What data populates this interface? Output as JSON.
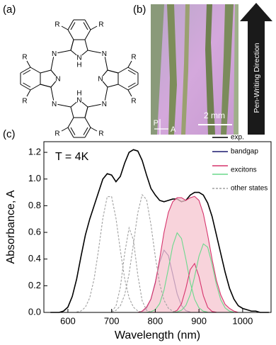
{
  "panels": [
    "(a)",
    "(b)",
    "(c)"
  ],
  "structure": {
    "substituents": [
      "R",
      "R",
      "R",
      "R",
      "R",
      "R",
      "R",
      "R"
    ],
    "nitrogens": [
      "N",
      "N",
      "N",
      "N",
      "N",
      "N",
      "N",
      "N"
    ],
    "hydrogens": [
      "H",
      "H"
    ]
  },
  "photo": {
    "polarizer": "P",
    "analyzer": "A",
    "scale": "2 mm",
    "arrow_label": "Pen-Writing Direction"
  },
  "chart_data": {
    "type": "line",
    "annotation": "T = 4K",
    "x_label": "Wavelength (nm)",
    "y_label": "Absorbance, A",
    "xlim": [
      545,
      1065
    ],
    "ylim": [
      0,
      1.28
    ],
    "xticks": [
      600,
      700,
      800,
      900,
      1000
    ],
    "yticks": [
      {
        "value": 0,
        "label": "0.0"
      },
      0.2,
      0.4,
      0.6,
      0.8,
      {
        "value": 1,
        "label": "1.0"
      },
      1.2
    ],
    "series": [
      {
        "name": "exp.",
        "color": "#000000",
        "curves": [
          {
            "x": [
              560,
              570,
              580,
              590,
              600,
              610,
              620,
              630,
              640,
              650,
              660,
              670,
              680,
              690,
              700,
              710,
              720,
              730,
              740,
              750,
              760,
              770,
              780,
              790,
              800,
              810,
              820,
              830,
              840,
              850,
              860,
              870,
              880,
              890,
              900,
              910,
              920,
              930,
              940,
              950,
              960,
              970,
              980,
              990,
              1000,
              1010,
              1020,
              1030,
              1040,
              1050,
              1060
            ],
            "values": [
              0,
              0,
              0,
              0.01,
              0.04,
              0.12,
              0.25,
              0.42,
              0.58,
              0.7,
              0.8,
              0.9,
              1.0,
              1.04,
              1.03,
              0.98,
              1.02,
              1.12,
              1.2,
              1.22,
              1.21,
              1.14,
              1.03,
              0.93,
              0.88,
              0.84,
              0.83,
              0.84,
              0.85,
              0.85,
              0.83,
              0.84,
              0.88,
              0.9,
              0.9,
              0.88,
              0.82,
              0.72,
              0.58,
              0.44,
              0.3,
              0.18,
              0.1,
              0.05,
              0.03,
              0.02,
              0.01,
              0.01,
              0,
              0,
              0
            ]
          }
        ]
      },
      {
        "name": "bandgap",
        "color": "#1b1a6e",
        "curves": [
          {
            "x": [
              770,
              780,
              790,
              800,
              810,
              820,
              830,
              840,
              850,
              860,
              870,
              880
            ],
            "values": [
              0.007,
              0.031,
              0.097,
              0.223,
              0.376,
              0.467,
              0.426,
              0.285,
              0.14,
              0.051,
              0.013,
              0.003
            ]
          }
        ]
      },
      {
        "name": "excitons",
        "curves": [
          {
            "color": "#d6336c",
            "fill": "#f5c4cf",
            "x": [
              760,
              770,
              780,
              790,
              800,
              810,
              820,
              830,
              840,
              850,
              860,
              870,
              880,
              890,
              900,
              910,
              920,
              930,
              940,
              950,
              960,
              970,
              980,
              990
            ],
            "values": [
              0,
              0.01,
              0.04,
              0.1,
              0.22,
              0.4,
              0.6,
              0.75,
              0.83,
              0.86,
              0.86,
              0.84,
              0.86,
              0.87,
              0.84,
              0.74,
              0.58,
              0.4,
              0.24,
              0.13,
              0.06,
              0.03,
              0.01,
              0
            ]
          },
          {
            "color": "#6ad98c",
            "x": [
              780,
              790,
              800,
              810,
              820,
              830,
              840,
              850,
              860,
              870,
              880,
              890,
              900,
              910,
              920
            ],
            "values": [
              0.001,
              0.005,
              0.02,
              0.066,
              0.167,
              0.328,
              0.501,
              0.597,
              0.554,
              0.4,
              0.225,
              0.099,
              0.034,
              0.009,
              0.002
            ]
          },
          {
            "color": "#d6336c",
            "x": [
              840,
              850,
              860,
              870,
              880,
              890,
              900,
              910,
              920,
              930,
              940
            ],
            "values": [
              0.002,
              0.015,
              0.065,
              0.18,
              0.321,
              0.367,
              0.269,
              0.126,
              0.038,
              0.007,
              0.001
            ]
          },
          {
            "color": "#6ad98c",
            "x": [
              840,
              850,
              860,
              870,
              880,
              890,
              900,
              910,
              920,
              930,
              940,
              950,
              960,
              970,
              980
            ],
            "values": [
              0.001,
              0.004,
              0.016,
              0.052,
              0.133,
              0.268,
              0.421,
              0.514,
              0.489,
              0.362,
              0.209,
              0.094,
              0.033,
              0.009,
              0.002
            ]
          }
        ]
      },
      {
        "name": "other states",
        "color": "#a0a0a0",
        "dashed": true,
        "curves": [
          {
            "x": [
              620,
              630,
              640,
              650,
              660,
              670,
              680,
              690,
              700,
              710,
              720,
              730,
              740,
              750,
              760,
              770
            ],
            "values": [
              0.003,
              0.011,
              0.039,
              0.11,
              0.251,
              0.466,
              0.706,
              0.868,
              0.868,
              0.706,
              0.466,
              0.251,
              0.11,
              0.039,
              0.011,
              0.003
            ]
          },
          {
            "x": [
              700,
              710,
              720,
              730,
              740,
              750,
              760,
              770,
              780,
              790
            ],
            "values": [
              0.007,
              0.047,
              0.187,
              0.443,
              0.634,
              0.543,
              0.28,
              0.087,
              0.016,
              0.002
            ]
          },
          {
            "x": [
              700,
              710,
              720,
              730,
              740,
              750,
              760,
              770,
              780,
              790,
              800,
              810,
              820,
              830,
              840,
              850
            ],
            "values": [
              0.004,
              0.015,
              0.049,
              0.132,
              0.289,
              0.515,
              0.747,
              0.882,
              0.846,
              0.66,
              0.419,
              0.216,
              0.091,
              0.031,
              0.009,
              0.002
            ]
          }
        ]
      }
    ]
  }
}
